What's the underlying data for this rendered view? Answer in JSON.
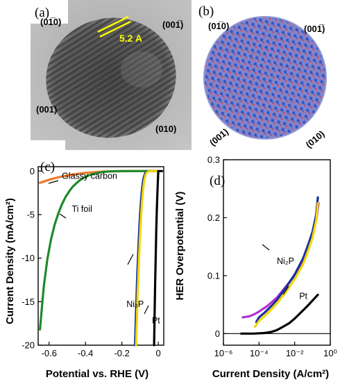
{
  "panel_a": {
    "label": "(a)",
    "facets": [
      "(01̅0)",
      "(001̅)",
      "(001)",
      "(010)"
    ],
    "scale_label": "5.2 A",
    "scale_color": "#ffff00"
  },
  "panel_b": {
    "label": "(b)",
    "facets": [
      "(01̅0)",
      "(001̅)",
      "(001)",
      "(010)"
    ],
    "atom_colors": [
      "#5b6fd8",
      "#e0607e"
    ]
  },
  "chart_data": [
    {
      "type": "line",
      "panel_label": "(c)",
      "xlabel": "Potential vs. RHE (V)",
      "ylabel": "Current Density (mA/cm²)",
      "xlim": [
        -0.66,
        0.03
      ],
      "ylim": [
        -20,
        0.5
      ],
      "xticks": [
        -0.6,
        -0.4,
        -0.2,
        0
      ],
      "xtick_labels": [
        "-0.6",
        "-0.4",
        "-0.2",
        "0"
      ],
      "yticks": [
        0,
        -5,
        -10,
        -15,
        -20
      ],
      "ytick_labels": [
        "0",
        "-5",
        "-10",
        "-15",
        "-20"
      ],
      "series": [
        {
          "name": "Glassy carbon",
          "color": "#f07a2a",
          "x": [
            -0.65,
            -0.6,
            -0.55,
            -0.5,
            -0.45,
            -0.4,
            -0.35,
            -0.3,
            -0.25,
            -0.2,
            -0.1,
            0
          ],
          "y": [
            -1.35,
            -1.0,
            -0.72,
            -0.5,
            -0.33,
            -0.21,
            -0.12,
            -0.06,
            -0.03,
            -0.01,
            0,
            0
          ]
        },
        {
          "name": "Ti foil",
          "color": "#1e8a2a",
          "x": [
            -0.65,
            -0.63,
            -0.61,
            -0.59,
            -0.57,
            -0.55,
            -0.53,
            -0.51,
            -0.49,
            -0.47,
            -0.45,
            -0.43,
            -0.41,
            -0.39,
            -0.37,
            -0.35,
            -0.33,
            -0.31,
            -0.29,
            -0.27,
            -0.25,
            -0.2,
            -0.1,
            0
          ],
          "y": [
            -18.2,
            -13.4,
            -10.2,
            -7.9,
            -6.2,
            -4.9,
            -3.85,
            -3.0,
            -2.35,
            -1.8,
            -1.4,
            -1.05,
            -0.78,
            -0.57,
            -0.41,
            -0.29,
            -0.2,
            -0.13,
            -0.08,
            -0.05,
            -0.03,
            -0.01,
            0,
            0
          ]
        },
        {
          "name": "Ni₂P",
          "color": "#1b2fa0",
          "x": [
            -0.128,
            -0.124,
            -0.12,
            -0.116,
            -0.112,
            -0.108,
            -0.104,
            -0.1,
            -0.096,
            -0.092,
            -0.088,
            -0.084,
            -0.08,
            -0.075,
            -0.07,
            -0.06,
            -0.04,
            0
          ],
          "y": [
            -20,
            -17.2,
            -14.6,
            -12.2,
            -10.1,
            -8.2,
            -6.5,
            -5.0,
            -3.75,
            -2.7,
            -1.85,
            -1.2,
            -0.75,
            -0.4,
            -0.2,
            -0.05,
            0,
            0
          ]
        },
        {
          "name": "Ni₂P",
          "color": "#f2d600",
          "x": [
            -0.122,
            -0.118,
            -0.114,
            -0.11,
            -0.106,
            -0.102,
            -0.098,
            -0.094,
            -0.09,
            -0.086,
            -0.082,
            -0.078,
            -0.074,
            -0.069,
            -0.064,
            -0.055,
            -0.035,
            0
          ],
          "y": [
            -20,
            -17.2,
            -14.6,
            -12.2,
            -10.1,
            -8.2,
            -6.5,
            -5.0,
            -3.75,
            -2.7,
            -1.85,
            -1.2,
            -0.75,
            -0.4,
            -0.2,
            -0.05,
            0,
            0
          ]
        },
        {
          "name": "Pt",
          "color": "#000000",
          "x": [
            -0.023,
            -0.02,
            -0.017,
            -0.014,
            -0.011,
            -0.008,
            -0.005,
            -0.002,
            0,
            0.02
          ],
          "y": [
            -20,
            -16,
            -12.5,
            -9.5,
            -6.8,
            -4.5,
            -2.6,
            -1.0,
            0,
            0
          ]
        }
      ],
      "annotations": [
        {
          "text": "Glassy carbon",
          "x": -0.53,
          "y": -0.9
        },
        {
          "text": "Ti foil",
          "x": -0.475,
          "y": -4.7
        },
        {
          "text": "Ni₂P",
          "x": -0.175,
          "y": -15.6
        },
        {
          "text": "Pt",
          "x": -0.035,
          "y": -17.5
        }
      ]
    },
    {
      "type": "line",
      "panel_label": "(d)",
      "xlabel": "Current Density (A/cm²)",
      "ylabel": "HER Overpotential (V)",
      "xscale": "log",
      "xlim": [
        1e-06,
        1
      ],
      "ylim": [
        -0.02,
        0.3
      ],
      "xticks": [
        1e-06,
        0.0001,
        0.01,
        1
      ],
      "xtick_labels": [
        "10⁻⁶",
        "10⁻⁴",
        "10⁻²",
        "10⁰"
      ],
      "yticks": [
        0,
        0.1,
        0.2,
        0.3
      ],
      "ytick_labels": [
        "0",
        "0.1",
        "0.2",
        "0.3"
      ],
      "series": [
        {
          "name": "Ni₂P",
          "color": "#b02fd6",
          "x": [
            1.2e-05,
            3e-05,
            6e-05,
            0.0001,
            0.0003,
            0.001,
            0.003,
            0.01,
            0.03,
            0.06,
            0.1,
            0.16,
            0.22
          ],
          "y": [
            0.028,
            0.03,
            0.034,
            0.038,
            0.048,
            0.062,
            0.08,
            0.1,
            0.125,
            0.15,
            0.17,
            0.195,
            0.225
          ]
        },
        {
          "name": "Ni₂P",
          "color": "#1b2fa0",
          "x": [
            7e-05,
            0.0001,
            0.0002,
            0.0005,
            0.001,
            0.003,
            0.01,
            0.03,
            0.06,
            0.1,
            0.16,
            0.2
          ],
          "y": [
            0.02,
            0.028,
            0.036,
            0.048,
            0.058,
            0.078,
            0.102,
            0.13,
            0.155,
            0.175,
            0.205,
            0.235
          ]
        },
        {
          "name": "Ni₂P",
          "color": "#f2d600",
          "x": [
            6e-05,
            0.0001,
            0.0002,
            0.0005,
            0.001,
            0.003,
            0.01,
            0.03,
            0.06,
            0.1,
            0.16,
            0.2
          ],
          "y": [
            0.012,
            0.022,
            0.03,
            0.042,
            0.052,
            0.07,
            0.094,
            0.12,
            0.145,
            0.165,
            0.195,
            0.225
          ]
        },
        {
          "name": "Pt",
          "color": "#000000",
          "x": [
            1e-05,
            5e-05,
            0.0002,
            0.0005,
            0.001,
            0.002,
            0.005,
            0.01,
            0.02,
            0.05,
            0.1,
            0.2
          ],
          "y": [
            0,
            0,
            0.001,
            0.003,
            0.006,
            0.011,
            0.018,
            0.026,
            0.035,
            0.047,
            0.057,
            0.067
          ]
        }
      ],
      "annotations": [
        {
          "text": "Ni₂P",
          "x": 0.001,
          "y": 0.12
        },
        {
          "text": "Pt",
          "x": 0.018,
          "y": 0.06
        }
      ]
    }
  ]
}
